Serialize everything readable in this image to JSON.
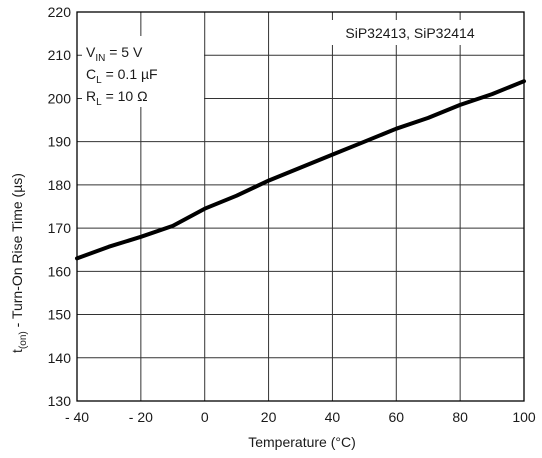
{
  "chart_data": {
    "type": "line",
    "xlabel": "Temperature (°C)",
    "ylabel_main": "t",
    "ylabel_sub": "(on)",
    "ylabel_rest": " - Turn-On Rise Time (µs)",
    "xlim": [
      -40,
      100
    ],
    "ylim": [
      130,
      220
    ],
    "x_ticks": [
      -40,
      -20,
      0,
      20,
      40,
      60,
      80,
      100
    ],
    "x_tick_labels": [
      "- 40",
      "- 20",
      "0",
      "20",
      "40",
      "60",
      "80",
      "100"
    ],
    "y_ticks": [
      130,
      140,
      150,
      160,
      170,
      180,
      190,
      200,
      210,
      220
    ],
    "y_tick_labels": [
      "130",
      "140",
      "150",
      "160",
      "170",
      "180",
      "190",
      "200",
      "210",
      "220"
    ],
    "grid": true,
    "legend_label": "SiP32413, SiP32414",
    "legend_placement": "top-right",
    "conditions_placement": "top-left",
    "conditions": [
      {
        "symbol": "V",
        "sub": "IN",
        "rest": " = 5 V"
      },
      {
        "symbol": "C",
        "sub": "L",
        "rest": " = 0.1 µF"
      },
      {
        "symbol": "R",
        "sub": "L",
        "rest": " = 10 Ω"
      }
    ],
    "series": [
      {
        "x": [
          -40,
          -30,
          -20,
          -10,
          0,
          10,
          20,
          30,
          40,
          50,
          60,
          70,
          80,
          90,
          100
        ],
        "y": [
          163,
          165.7,
          168,
          170.5,
          174.5,
          177.5,
          181,
          184,
          187,
          190,
          193,
          195.5,
          198.5,
          201,
          204
        ],
        "color": "#000000"
      }
    ]
  }
}
